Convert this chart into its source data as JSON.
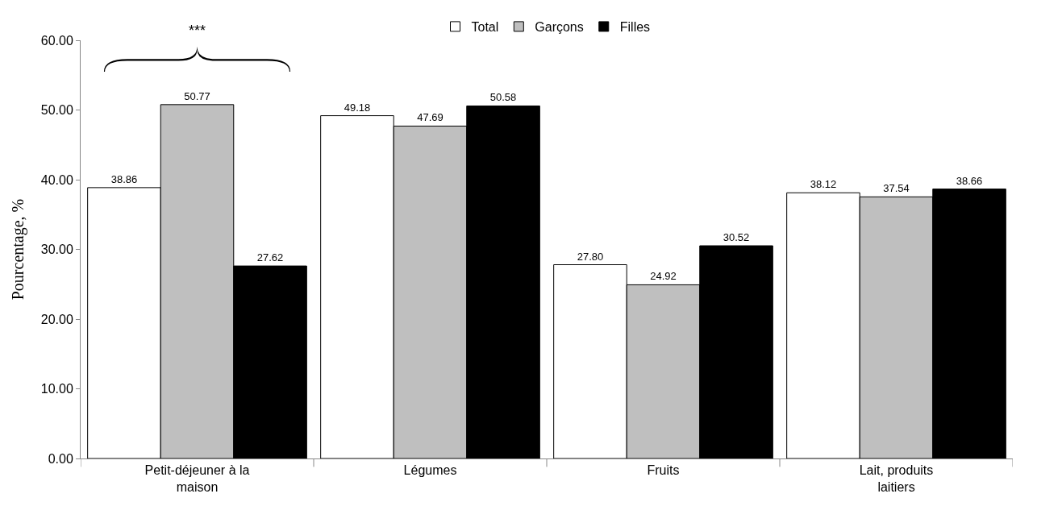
{
  "chart_data": {
    "type": "bar",
    "ylabel": "Pourcentage, %",
    "categories": [
      "Petit-déjeuner à la maison",
      "Légumes",
      "Fruits",
      "Lait, produits laitiers"
    ],
    "series": [
      {
        "name": "Total",
        "color": "#ffffff",
        "values": [
          38.86,
          49.18,
          27.8,
          38.12
        ],
        "value_labels": [
          "38.86",
          "49.18",
          "27.80",
          "38.12"
        ]
      },
      {
        "name": "Garçons",
        "color": "#bfbfbf",
        "values": [
          50.77,
          47.69,
          24.92,
          37.54
        ],
        "value_labels": [
          "50.77",
          "47.69",
          "24.92",
          "37.54"
        ]
      },
      {
        "name": "Filles",
        "color": "#000000",
        "values": [
          27.62,
          50.58,
          30.52,
          38.66
        ],
        "value_labels": [
          "27.62",
          "50.58",
          "30.52",
          "38.66"
        ]
      }
    ],
    "ylim": [
      0,
      60
    ],
    "yticks": [
      {
        "value": 0,
        "label": "0.00"
      },
      {
        "value": 10,
        "label": "10.00"
      },
      {
        "value": 20,
        "label": "20.00"
      },
      {
        "value": 30,
        "label": "30.00"
      },
      {
        "value": 40,
        "label": "40.00"
      },
      {
        "value": 50,
        "label": "50.00"
      },
      {
        "value": 60,
        "label": "60.00"
      }
    ],
    "legend": "top",
    "annotations": [
      "***"
    ]
  }
}
